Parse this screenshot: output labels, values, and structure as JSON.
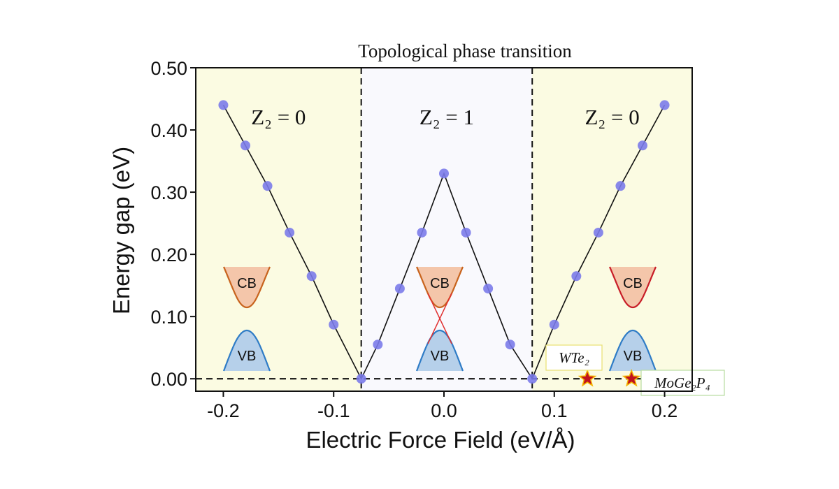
{
  "chart_data": {
    "type": "scatter",
    "title": "Topological phase transition",
    "xlabel": "Electric Force Field (eV/Å)",
    "ylabel": "Energy gap (eV)",
    "xlim": [
      -0.225,
      0.225
    ],
    "ylim": [
      -0.02,
      0.5
    ],
    "x_ticks": [
      -0.2,
      -0.1,
      0.0,
      0.1,
      0.2
    ],
    "x_tick_labels": [
      "-0.2",
      "-0.1",
      "0.0",
      "0.1",
      "0.2"
    ],
    "y_ticks": [
      0.0,
      0.1,
      0.2,
      0.3,
      0.4,
      0.5
    ],
    "y_tick_labels": [
      "0.00",
      "0.10",
      "0.20",
      "0.30",
      "0.40",
      "0.50"
    ],
    "series": [
      {
        "x": [
          -0.2,
          -0.18,
          -0.16,
          -0.14,
          -0.12,
          -0.1,
          -0.075,
          -0.06,
          -0.04,
          -0.02,
          0.0,
          0.02,
          0.04,
          0.06,
          0.08,
          0.1,
          0.12,
          0.14,
          0.16,
          0.18,
          0.2
        ],
        "y": [
          0.44,
          0.375,
          0.31,
          0.235,
          0.165,
          0.087,
          0.0,
          0.055,
          0.145,
          0.235,
          0.33,
          0.235,
          0.145,
          0.055,
          0.0,
          0.087,
          0.165,
          0.235,
          0.31,
          0.375,
          0.44
        ]
      }
    ],
    "phase_boundaries": [
      -0.075,
      0.08
    ],
    "regions": [
      {
        "label": "Z₂ = 0",
        "from": -0.225,
        "to": -0.075,
        "color": "#fbfbe2"
      },
      {
        "label": "Z₂ = 1",
        "from": -0.075,
        "to": 0.08,
        "color": "#f9f9fd"
      },
      {
        "label": "Z₂ = 0",
        "from": 0.08,
        "to": 0.225,
        "color": "#fbfbe2"
      }
    ],
    "band_labels": {
      "cb": "CB",
      "vb": "VB"
    },
    "materials": [
      {
        "name": "WTe₂",
        "x": 0.13,
        "y": 0.0
      },
      {
        "name": "MoGe₂P₄",
        "x": 0.17,
        "y": 0.0
      }
    ],
    "grid": false
  },
  "colors": {
    "marker": "#7b7bea",
    "line": "#111111",
    "star": "#c1121f",
    "star_edge": "#f4b400",
    "cb_fill": "#f4c6aa",
    "cb_edge": "#c8641e",
    "cb_edge_right": "#c81e28",
    "vb_fill": "#b6d0ea",
    "vb_edge": "#2f7cc6",
    "crossing": "#e03030",
    "wte2_border": "#e8e070",
    "moge_border": "#b8dca0"
  }
}
